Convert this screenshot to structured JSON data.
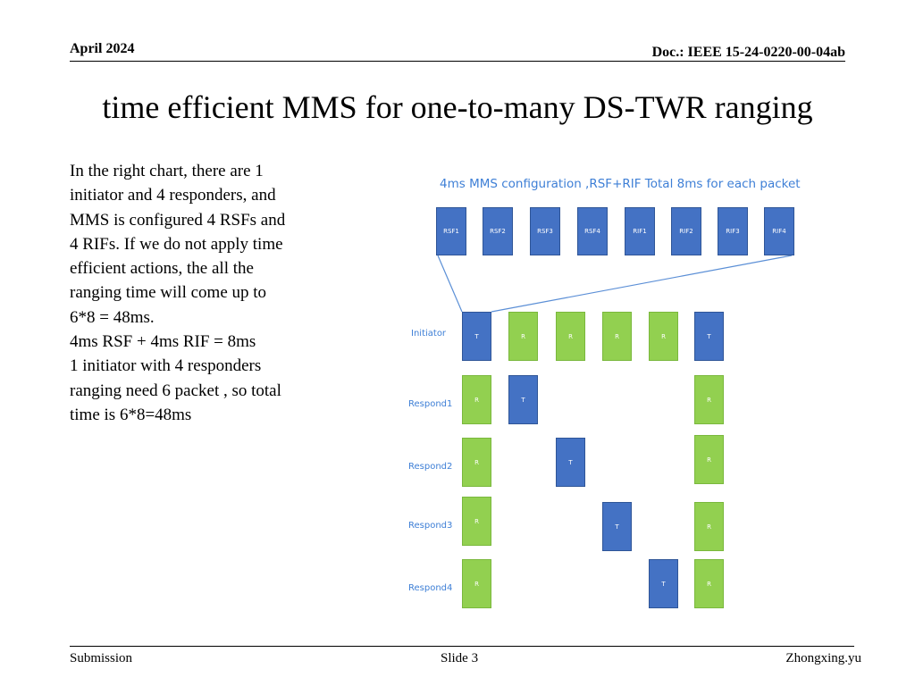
{
  "header": {
    "date": "April 2024",
    "doc": "Doc.: IEEE 15-24-0220-00-04ab"
  },
  "title": "time efficient  MMS for one-to-many DS-TWR ranging",
  "body_lines": [
    "In the right chart, there are 1",
    "initiator and 4 responders,  and",
    "MMS is configured 4 RSFs and",
    "4 RIFs. If we do not apply time",
    "efficient actions, the all the",
    "ranging time will come up to",
    "6*8 = 48ms.",
    "4ms RSF + 4ms RIF = 8ms",
    "1 initiator with 4 responders",
    "ranging need 6 packet , so total",
    "time is 6*8=48ms"
  ],
  "diagram": {
    "title": "4ms MMS configuration ,RSF+RIF Total 8ms for each packet",
    "config_blocks": [
      "RSF1",
      "RSF2",
      "RSF3",
      "RSF4",
      "RIF1",
      "RIF2",
      "RIF3",
      "RIF4"
    ],
    "rows": [
      {
        "label": "Initiator",
        "cells": [
          "T",
          "R",
          "R",
          "R",
          "R",
          "T"
        ]
      },
      {
        "label": "Respond1",
        "cells": [
          "R",
          "T",
          "",
          "",
          "",
          "R"
        ]
      },
      {
        "label": "Respond2",
        "cells": [
          "R",
          "",
          "T",
          "",
          "",
          "R"
        ]
      },
      {
        "label": "Respond3",
        "cells": [
          "R",
          "",
          "",
          "T",
          "",
          "R"
        ]
      },
      {
        "label": "Respond4",
        "cells": [
          "R",
          "",
          "",
          "",
          "T",
          "R"
        ]
      }
    ],
    "colors": {
      "tx": "#4472c4",
      "rx": "#92d050",
      "label": "#3e7fd6",
      "connector": "#5b8fd6"
    }
  },
  "footer": {
    "left": "Submission",
    "center": "Slide 3",
    "right": "Zhongxing.yu"
  }
}
